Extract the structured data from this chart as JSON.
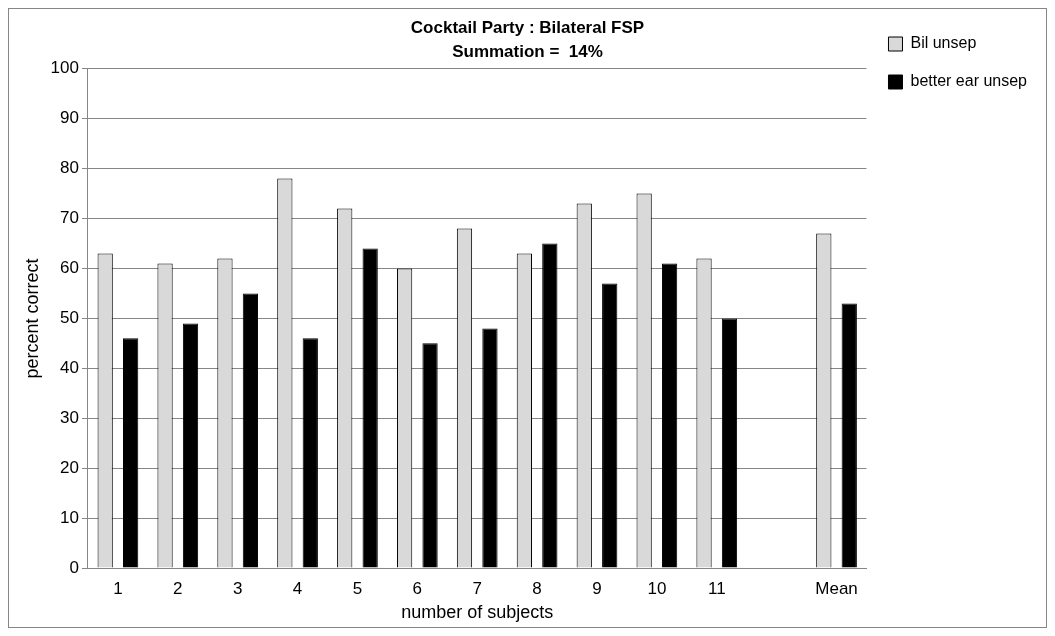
{
  "chart_data": {
    "type": "bar",
    "title": "Cocktail Party : Bilateral FSP",
    "subtitle": "Summation =  14%",
    "xlabel": "number of subjects",
    "ylabel": "percent correct",
    "categories": [
      "1",
      "2",
      "3",
      "4",
      "5",
      "6",
      "7",
      "8",
      "9",
      "10",
      "11",
      null,
      "Mean"
    ],
    "series": [
      {
        "name": "Bil unsep",
        "color": "#d9d9d9",
        "values": [
          63,
          61,
          62,
          78,
          72,
          60,
          68,
          63,
          73,
          75,
          62,
          null,
          67
        ]
      },
      {
        "name": "better ear unsep",
        "color": "#000000",
        "values": [
          46,
          49,
          55,
          46,
          64,
          45,
          48,
          65,
          57,
          61,
          50,
          null,
          53
        ]
      }
    ],
    "ylim": [
      0,
      100
    ],
    "yticks": [
      0,
      10,
      20,
      30,
      40,
      50,
      60,
      70,
      80,
      90,
      100
    ],
    "grid": "y",
    "legend": "top right"
  }
}
